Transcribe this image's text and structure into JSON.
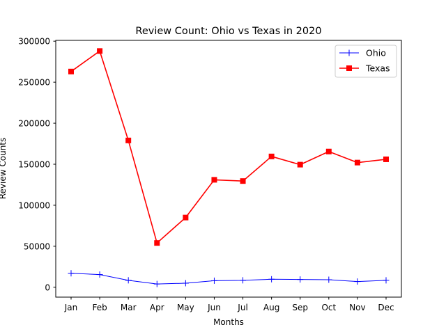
{
  "chart_data": {
    "type": "line",
    "title": "Review Count: Ohio vs Texas in 2020",
    "xlabel": "Months",
    "ylabel": "Review Counts",
    "categories": [
      "Jan",
      "Feb",
      "Mar",
      "Apr",
      "May",
      "Jun",
      "Jul",
      "Aug",
      "Sep",
      "Oct",
      "Nov",
      "Dec"
    ],
    "y_ticks": [
      0,
      50000,
      100000,
      150000,
      200000,
      250000,
      300000
    ],
    "ylim": [
      -12000,
      301000
    ],
    "grid": false,
    "legend_position": "upper right",
    "series": [
      {
        "name": "Ohio",
        "color": "#0000ff",
        "marker": "plus",
        "values": [
          17000,
          15500,
          8500,
          4000,
          5000,
          8000,
          8500,
          9800,
          9500,
          9200,
          7000,
          8500
        ]
      },
      {
        "name": "Texas",
        "color": "#ff0000",
        "marker": "square",
        "values": [
          263000,
          288000,
          179000,
          54000,
          85000,
          131000,
          129500,
          159500,
          149500,
          165500,
          152000,
          156000
        ]
      }
    ]
  }
}
